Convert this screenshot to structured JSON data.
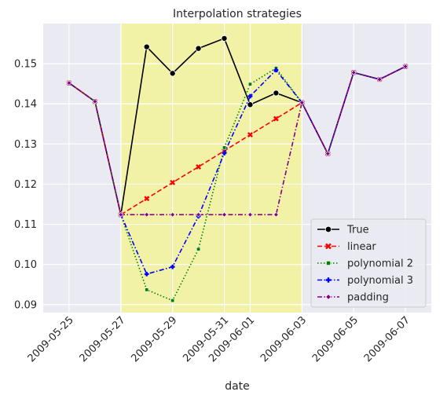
{
  "chart_data": {
    "type": "line",
    "title": "Interpolation strategies",
    "xlabel": "date",
    "ylabel": "",
    "x_tick_labels": [
      "2009-05-25",
      "2009-05-27",
      "2009-05-29",
      "2009-05-31",
      "2009-06-01",
      "2009-06-03",
      "2009-06-05",
      "2009-06-07"
    ],
    "y_tick_labels": [
      "0.09",
      "0.10",
      "0.11",
      "0.12",
      "0.13",
      "0.14",
      "0.15"
    ],
    "xlim": [
      "2009-05-24",
      "2009-06-08"
    ],
    "ylim": [
      0.088,
      0.16
    ],
    "grid": true,
    "legend_position": "lower-right",
    "highlight_range": [
      "2009-05-27",
      "2009-06-03"
    ],
    "highlight_color": "#f2f2a2",
    "x": [
      "2009-05-25",
      "2009-05-26",
      "2009-05-27",
      "2009-05-28",
      "2009-05-29",
      "2009-05-30",
      "2009-05-31",
      "2009-06-01",
      "2009-06-02",
      "2009-06-03",
      "2009-06-04",
      "2009-06-05",
      "2009-06-06",
      "2009-06-07"
    ],
    "series": [
      {
        "name": "True",
        "color": "#000000",
        "dash": "solid",
        "marker": "circle",
        "values": [
          0.1452,
          0.1406,
          0.1124,
          0.1542,
          0.1476,
          0.1538,
          0.1563,
          0.1398,
          0.1427,
          0.1403,
          0.1276,
          0.1478,
          0.1461,
          0.1493
        ]
      },
      {
        "name": "linear",
        "color": "#ff0000",
        "dash": "dashed",
        "marker": "x",
        "values": [
          0.1452,
          0.1406,
          0.1124,
          0.1164,
          0.1204,
          0.1243,
          0.1283,
          0.1323,
          0.1363,
          0.1403,
          0.1276,
          0.1478,
          0.1461,
          0.1493
        ]
      },
      {
        "name": "polynomial 2",
        "color": "#008000",
        "dash": "dotted",
        "marker": "square",
        "values": [
          0.1452,
          0.1406,
          0.1124,
          0.0937,
          0.091,
          0.1038,
          0.1291,
          0.1449,
          0.1489,
          0.1403,
          0.1276,
          0.1478,
          0.1461,
          0.1493
        ]
      },
      {
        "name": "polynomial 3",
        "color": "#0000ff",
        "dash": "dashdot",
        "marker": "plus",
        "values": [
          0.1452,
          0.1406,
          0.1124,
          0.0976,
          0.0994,
          0.112,
          0.1277,
          0.1419,
          0.1484,
          0.1403,
          0.1276,
          0.1478,
          0.1461,
          0.1493
        ]
      },
      {
        "name": "padding",
        "color": "#800080",
        "dash": "dashdot",
        "marker": "diamond",
        "values": [
          0.1452,
          0.1406,
          0.1124,
          0.1124,
          0.1124,
          0.1124,
          0.1124,
          0.1124,
          0.1124,
          0.1403,
          0.1276,
          0.1478,
          0.1461,
          0.1493
        ]
      }
    ]
  }
}
